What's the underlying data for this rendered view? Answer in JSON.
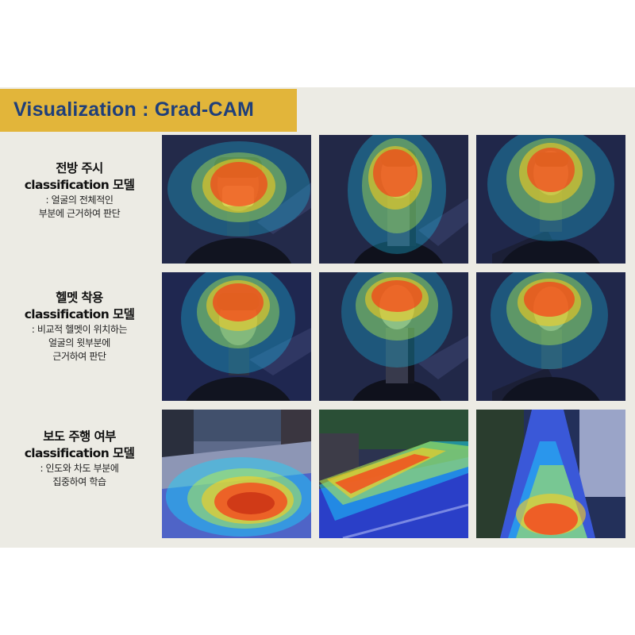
{
  "title": "Visualization : Grad-CAM",
  "rows": [
    {
      "title_line1": "전방 주시",
      "title_line2": "classification 모델",
      "desc": [
        ": 얼굴의 전체적인",
        "부분에 근거하여 판단"
      ],
      "panels": [
        {
          "type": "face",
          "icon": "gradcam-face-heatmap"
        },
        {
          "type": "face",
          "icon": "gradcam-face-heatmap"
        },
        {
          "type": "face",
          "icon": "gradcam-face-heatmap"
        }
      ]
    },
    {
      "title_line1": "헬멧 착용",
      "title_line2": "classification 모델",
      "desc": [
        ": 비교적 헬멧이 위치하는",
        "얼굴의 윗부분에",
        "근거하여 판단"
      ],
      "panels": [
        {
          "type": "face",
          "icon": "gradcam-face-heatmap"
        },
        {
          "type": "face",
          "icon": "gradcam-face-heatmap"
        },
        {
          "type": "face",
          "icon": "gradcam-face-heatmap"
        }
      ]
    },
    {
      "title_line1": "보도 주행 여부",
      "title_line2": "classification 모델",
      "desc": [
        ": 인도와 차도 부분에",
        "집중하여 학습"
      ],
      "panels": [
        {
          "type": "road",
          "icon": "gradcam-sidewalk-heatmap"
        },
        {
          "type": "road",
          "icon": "gradcam-street-heatmap"
        },
        {
          "type": "road",
          "icon": "gradcam-brick-path-heatmap"
        }
      ]
    }
  ]
}
